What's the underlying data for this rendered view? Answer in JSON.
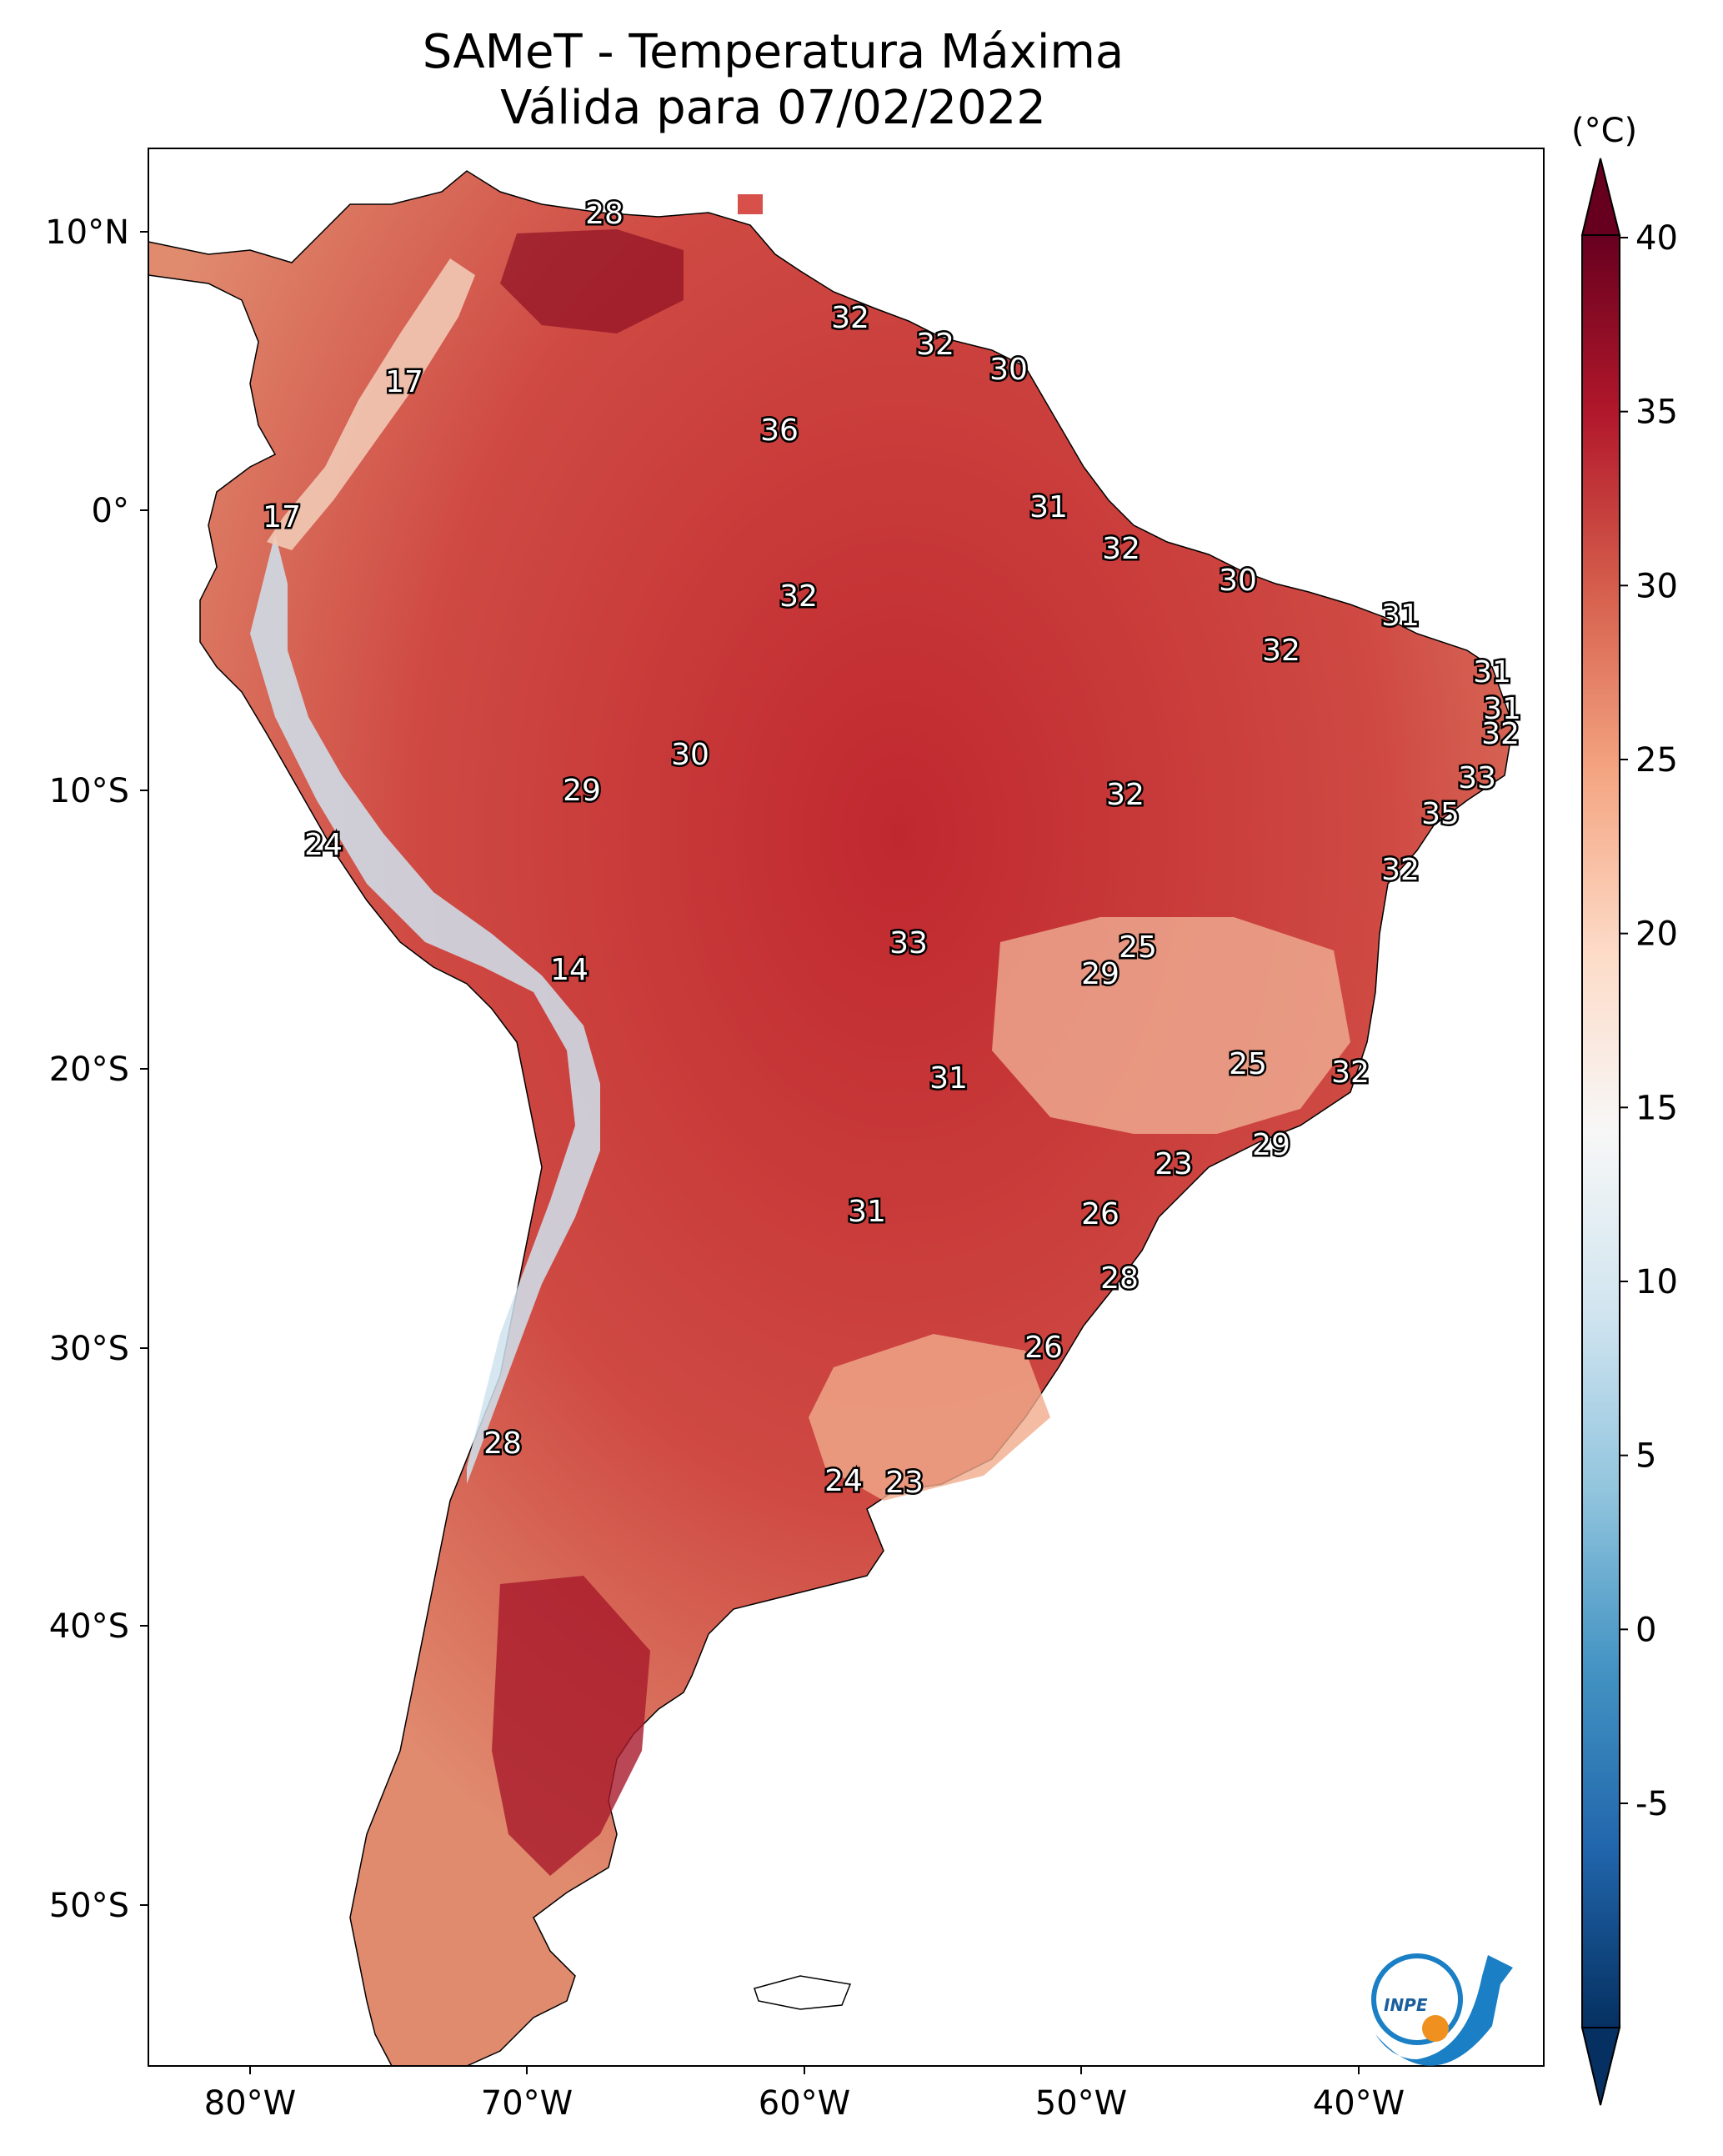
{
  "title": {
    "line1": "SAMeT - Temperatura Máxima",
    "line2": "Válida para 07/02/2022"
  },
  "colorbar": {
    "unit": "(°C)",
    "ticks": [
      "40",
      "35",
      "30",
      "25",
      "20",
      "15",
      "10",
      "5",
      "0",
      "-5"
    ],
    "colors": [
      "#053061",
      "#2166ac",
      "#4393c3",
      "#92c5de",
      "#d1e5f0",
      "#f7f7f7",
      "#fddbc7",
      "#f4a582",
      "#d6604d",
      "#b2182b",
      "#67001f"
    ]
  },
  "axes": {
    "lat_labels": [
      "10°N",
      "0°",
      "10°S",
      "20°S",
      "30°S",
      "40°S",
      "50°S"
    ],
    "lon_labels": [
      "80°W",
      "70°W",
      "60°W",
      "50°W",
      "40°W"
    ]
  },
  "logo": {
    "text": "INPE"
  },
  "temperature_labels": [
    {
      "v": "28"
    },
    {
      "v": "32"
    },
    {
      "v": "32"
    },
    {
      "v": "30"
    },
    {
      "v": "17"
    },
    {
      "v": "36"
    },
    {
      "v": "17"
    },
    {
      "v": "31"
    },
    {
      "v": "32"
    },
    {
      "v": "30"
    },
    {
      "v": "32"
    },
    {
      "v": "31"
    },
    {
      "v": "32"
    },
    {
      "v": "31"
    },
    {
      "v": "31"
    },
    {
      "v": "32"
    },
    {
      "v": "30"
    },
    {
      "v": "29"
    },
    {
      "v": "32"
    },
    {
      "v": "33"
    },
    {
      "v": "35"
    },
    {
      "v": "24"
    },
    {
      "v": "32"
    },
    {
      "v": "14"
    },
    {
      "v": "33"
    },
    {
      "v": "25"
    },
    {
      "v": "29"
    },
    {
      "v": "25"
    },
    {
      "v": "32"
    },
    {
      "v": "31"
    },
    {
      "v": "29"
    },
    {
      "v": "23"
    },
    {
      "v": "31"
    },
    {
      "v": "26"
    },
    {
      "v": "28"
    },
    {
      "v": "26"
    },
    {
      "v": "28"
    },
    {
      "v": "24"
    },
    {
      "v": "23"
    }
  ]
}
